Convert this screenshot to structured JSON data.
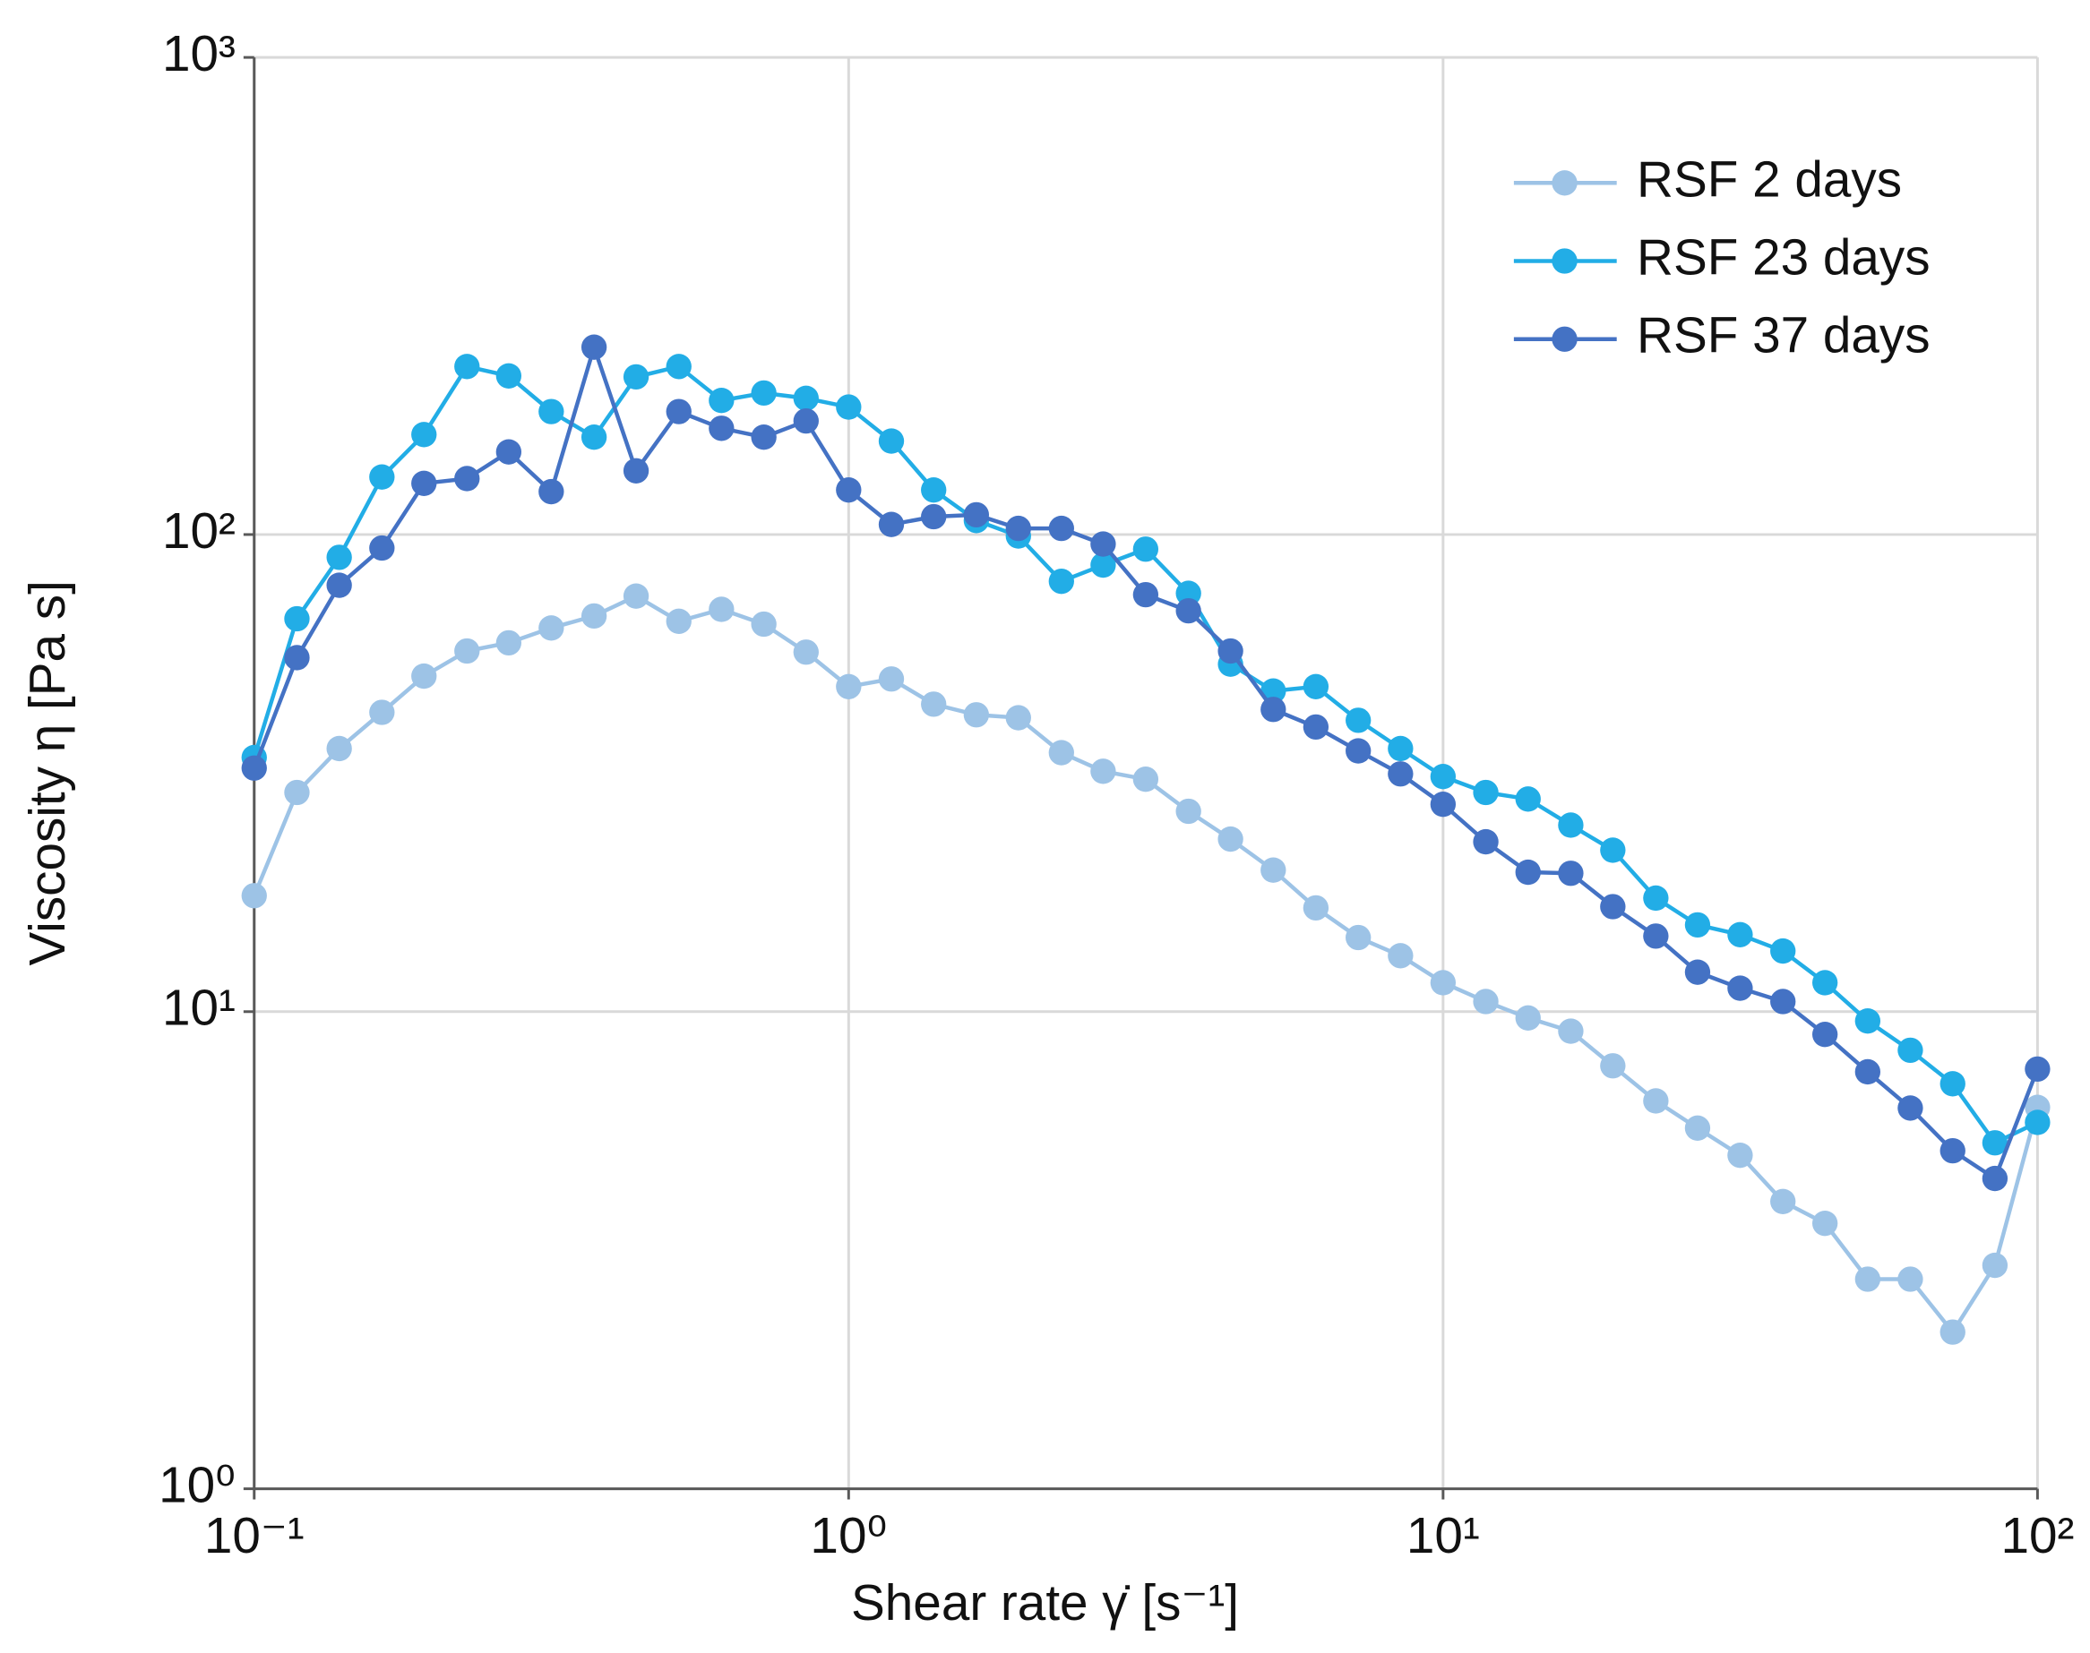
{
  "chart_data": {
    "type": "line",
    "xlabel": "Shear rate γ̇ [s⁻¹]",
    "ylabel": "Viscosity η [Pa s]",
    "x": [
      0.1,
      0.118,
      0.139,
      0.164,
      0.193,
      0.228,
      0.268,
      0.316,
      0.373,
      0.439,
      0.518,
      0.611,
      0.72,
      0.848,
      1,
      1.18,
      1.39,
      1.64,
      1.93,
      2.28,
      2.68,
      3.16,
      3.73,
      4.39,
      5.18,
      6.11,
      7.2,
      8.48,
      10,
      11.8,
      13.9,
      16.4,
      19.3,
      22.8,
      26.8,
      31.6,
      37.3,
      43.9,
      51.8,
      61.1,
      72,
      84.8,
      100
    ],
    "series": [
      {
        "name": "RSF 2 days",
        "color": "#9dc3e6",
        "values": [
          17.5,
          28.8,
          35.6,
          42.4,
          50.5,
          57,
          59.3,
          63.7,
          67.5,
          74.3,
          65.8,
          69.7,
          64.9,
          56.7,
          48,
          49.8,
          44.1,
          41.9,
          41.3,
          34.9,
          31.9,
          30.7,
          26.3,
          23,
          19.8,
          16.5,
          14.3,
          13.1,
          11.5,
          10.5,
          9.7,
          9.1,
          7.7,
          6.5,
          5.7,
          5.0,
          4.0,
          3.6,
          2.75,
          2.75,
          2.13,
          2.94,
          6.3
        ]
      },
      {
        "name": "RSF 23 days",
        "color": "#22ade6",
        "values": [
          34.1,
          66.6,
          89.6,
          132,
          162,
          225,
          215,
          181,
          160,
          214,
          225,
          191,
          198,
          193,
          185,
          157,
          124,
          107,
          99.3,
          79.8,
          86.3,
          93.2,
          75.3,
          53.5,
          47,
          48,
          40.8,
          35.6,
          31.1,
          28.8,
          27.9,
          24.6,
          21.8,
          17.3,
          15.2,
          14.5,
          13.4,
          11.5,
          9.56,
          8.3,
          7.06,
          5.31,
          5.86
        ]
      },
      {
        "name": "RSF 37 days",
        "color": "#4472c4",
        "values": [
          32.4,
          55.2,
          78.3,
          93.7,
          128,
          131,
          149,
          123,
          247,
          136,
          181,
          167,
          160,
          173,
          124,
          105,
          109,
          110,
          103,
          103,
          95.5,
          74.8,
          69.2,
          57,
          43,
          39.5,
          35.2,
          31.5,
          27.2,
          22.7,
          19.6,
          19.5,
          16.6,
          14.4,
          12.1,
          11.2,
          10.5,
          8.96,
          7.48,
          6.28,
          5.11,
          4.47,
          7.58
        ]
      }
    ],
    "xscale": "log",
    "yscale": "log",
    "xlim": [
      0.1,
      100
    ],
    "ylim": [
      1,
      1000
    ],
    "xticks": [
      {
        "value": 0.1,
        "label": "10⁻¹"
      },
      {
        "value": 1,
        "label": "10⁰"
      },
      {
        "value": 10,
        "label": "10¹"
      },
      {
        "value": 100,
        "label": "10²"
      }
    ],
    "yticks": [
      {
        "value": 1,
        "label": "10⁰"
      },
      {
        "value": 10,
        "label": "10¹"
      },
      {
        "value": 100,
        "label": "10²"
      },
      {
        "value": 1000,
        "label": "10³"
      }
    ],
    "grid": true,
    "legend": "upper right"
  }
}
